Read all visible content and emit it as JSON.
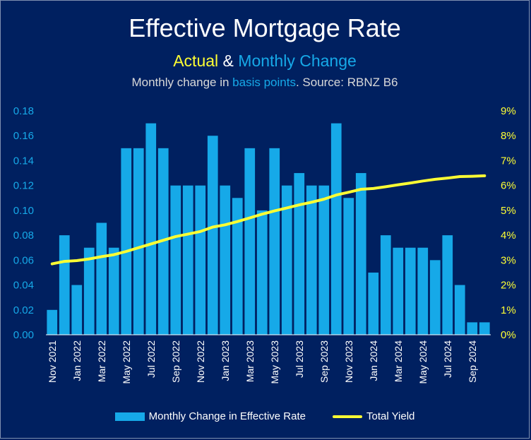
{
  "chart_data": {
    "type": "bar",
    "title": "Effective Mortgage Rate",
    "subtitle_parts": [
      {
        "text": "Actual",
        "color": "#ffff33"
      },
      {
        "text": " & ",
        "color": "#ffffff"
      },
      {
        "text": "Monthly Change",
        "color": "#16a9e8"
      }
    ],
    "caption_parts": [
      {
        "text": "Monthly change in ",
        "color": "#d9d9d9"
      },
      {
        "text": "basis points",
        "color": "#16a9e8"
      },
      {
        "text": ". Source: RBNZ B6",
        "color": "#d9d9d9"
      }
    ],
    "categories": [
      "Nov 2021",
      "Dec 2021",
      "Jan 2022",
      "Feb 2022",
      "Mar 2022",
      "Apr 2022",
      "May 2022",
      "Jun 2022",
      "Jul 2022",
      "Aug 2022",
      "Sep 2022",
      "Oct 2022",
      "Nov 2022",
      "Dec 2022",
      "Jan 2023",
      "Feb 2023",
      "Mar 2023",
      "Apr 2023",
      "May 2023",
      "Jun 2023",
      "Jul 2023",
      "Aug 2023",
      "Sep 2023",
      "Oct 2023",
      "Nov 2023",
      "Dec 2023",
      "Jan 2024",
      "Feb 2024",
      "Mar 2024",
      "Apr 2024",
      "May 2024",
      "Jun 2024",
      "Jul 2024",
      "Aug 2024",
      "Sep 2024",
      "Oct 2024"
    ],
    "x_tick_labels": [
      "Nov 2021",
      "",
      "Jan 2022",
      "",
      "Mar 2022",
      "",
      "May 2022",
      "",
      "Jul 2022",
      "",
      "Sep 2022",
      "",
      "Nov 2022",
      "",
      "Jan 2023",
      "",
      "Mar 2023",
      "",
      "May 2023",
      "",
      "Jul 2023",
      "",
      "Sep 2023",
      "",
      "Nov 2023",
      "",
      "Jan 2024",
      "",
      "Mar 2024",
      "",
      "May 2024",
      "",
      "Jul 2024",
      "",
      "Sep 2024",
      ""
    ],
    "series": [
      {
        "name": "Monthly Change in Effective Rate",
        "type": "bar",
        "axis": "left",
        "color": "#16a9e8",
        "values": [
          0.02,
          0.08,
          0.04,
          0.07,
          0.09,
          0.07,
          0.15,
          0.15,
          0.17,
          0.15,
          0.12,
          0.12,
          0.12,
          0.16,
          0.12,
          0.11,
          0.15,
          0.1,
          0.15,
          0.12,
          0.13,
          0.12,
          0.12,
          0.17,
          0.11,
          0.13,
          0.05,
          0.08,
          0.07,
          0.07,
          0.07,
          0.06,
          0.08,
          0.04,
          0.01,
          0.01
        ]
      },
      {
        "name": "Total Yield",
        "type": "line",
        "axis": "right",
        "color": "#ffff33",
        "values": [
          2.85,
          2.95,
          2.98,
          3.05,
          3.14,
          3.22,
          3.35,
          3.5,
          3.65,
          3.8,
          3.95,
          4.05,
          4.15,
          4.33,
          4.42,
          4.55,
          4.7,
          4.85,
          4.98,
          5.1,
          5.22,
          5.33,
          5.45,
          5.62,
          5.73,
          5.85,
          5.88,
          5.95,
          6.03,
          6.1,
          6.18,
          6.25,
          6.3,
          6.36,
          6.37,
          6.39
        ]
      }
    ],
    "y_left": {
      "ylim": [
        0,
        0.18
      ],
      "ticks": [
        0,
        0.02,
        0.04,
        0.06,
        0.08,
        0.1,
        0.12,
        0.14,
        0.16,
        0.18
      ],
      "tick_labels": [
        "0.00",
        "0.02",
        "0.04",
        "0.06",
        "0.08",
        "0.10",
        "0.12",
        "0.14",
        "0.16",
        "0.18"
      ],
      "color": "#16a9e8"
    },
    "y_right": {
      "ylim": [
        0,
        9
      ],
      "ticks": [
        0,
        1,
        2,
        3,
        4,
        5,
        6,
        7,
        8,
        9
      ],
      "tick_labels": [
        "0%",
        "1%",
        "2%",
        "3%",
        "4%",
        "5%",
        "6%",
        "7%",
        "8%",
        "9%"
      ],
      "color": "#ffff33"
    },
    "legend": {
      "position": "bottom",
      "items": [
        {
          "label": "Monthly Change in Effective Rate",
          "kind": "bar",
          "color": "#16a9e8"
        },
        {
          "label": "Total Yield",
          "kind": "line",
          "color": "#ffff33"
        }
      ]
    },
    "grid": false
  }
}
